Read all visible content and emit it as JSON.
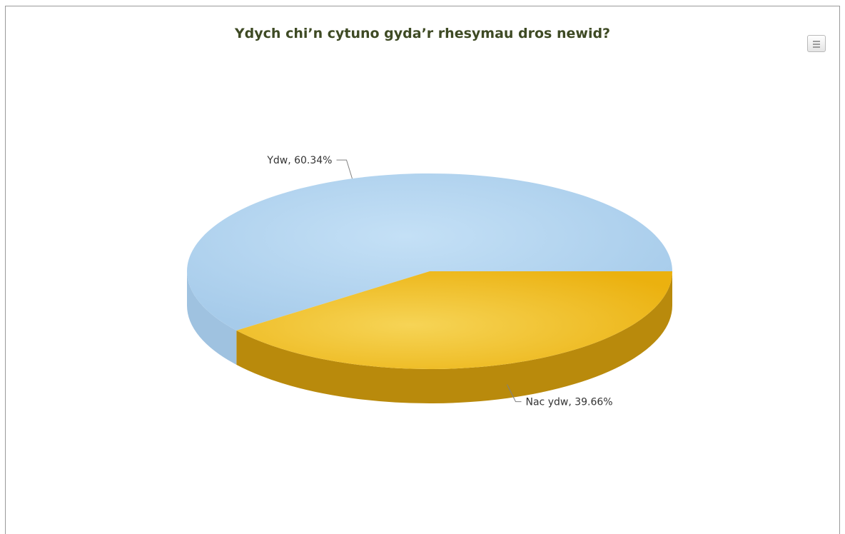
{
  "chart_data": {
    "type": "pie",
    "title": "Ydych chi’n cytuno gyda’r rhesymau dros newid?",
    "three_d": true,
    "slices": [
      {
        "label": "Ydw",
        "value": 60.34,
        "text": "Ydw, 60.34%",
        "color": "#b9d8f0"
      },
      {
        "label": "Nac ydw",
        "value": 39.66,
        "text": "Nac ydw, 39.66%",
        "color": "#efbc19"
      }
    ]
  },
  "export_menu": {
    "icon": "hamburger-menu-icon"
  }
}
